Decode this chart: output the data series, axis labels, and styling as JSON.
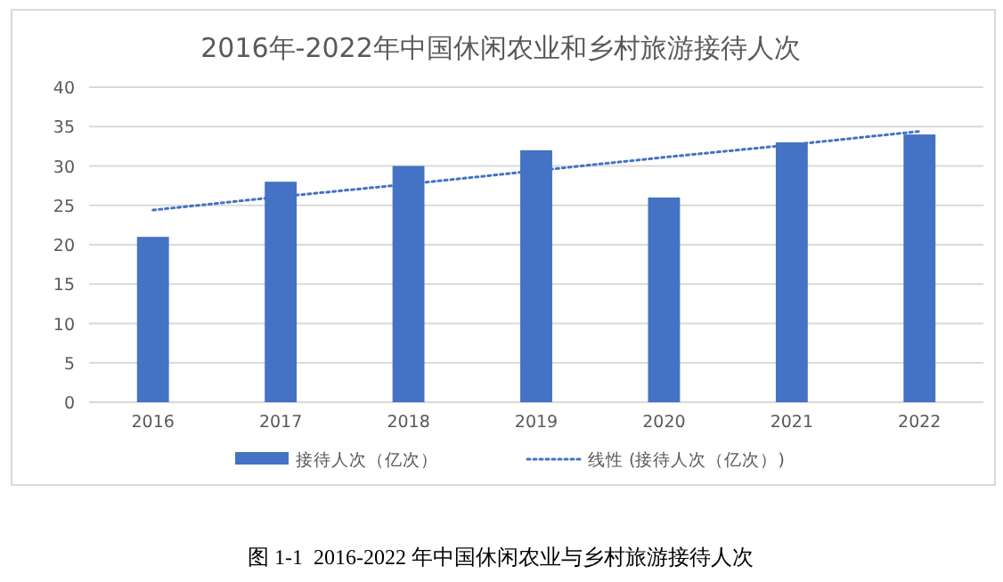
{
  "chart_data": {
    "type": "bar",
    "title": "2016年-2022年中国休闲农业和乡村旅游接待人次",
    "categories": [
      "2016",
      "2017",
      "2018",
      "2019",
      "2020",
      "2021",
      "2022"
    ],
    "series": [
      {
        "name": "接待人次（亿次）",
        "color": "#4472c4",
        "values": [
          21,
          28,
          30,
          32,
          26,
          33,
          34
        ]
      },
      {
        "name": "线性 (接待人次（亿次）)",
        "type": "line",
        "line_style": "dotted",
        "color": "#4472c4",
        "values": [
          24.4,
          26.1,
          27.7,
          29.4,
          31.1,
          32.7,
          34.4
        ]
      }
    ],
    "ylim": [
      0,
      40
    ],
    "yticks": [
      0,
      5,
      10,
      15,
      20,
      25,
      30,
      35,
      40
    ],
    "grid": "y",
    "legend": "bottom",
    "annotations": [
      "图 1-1  2016-2022 年中国休闲农业与乡村旅游接待人次"
    ]
  }
}
